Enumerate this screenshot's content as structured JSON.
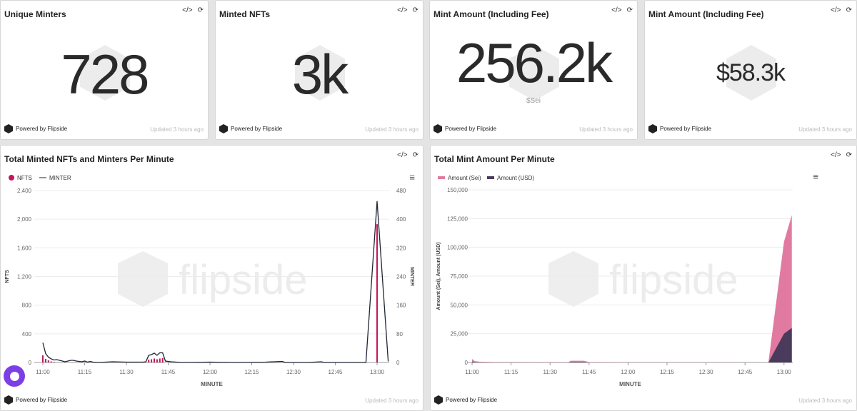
{
  "cards": [
    {
      "title": "Unique Minters",
      "value": "728",
      "sub": ""
    },
    {
      "title": "Minted NFTs",
      "value": "3k",
      "sub": ""
    },
    {
      "title": "Mint Amount (Including Fee)",
      "value": "256.2k",
      "sub": "$Sei"
    },
    {
      "title": "Mint Amount (Including Fee)",
      "value": "$58.3k",
      "sub": ""
    }
  ],
  "footer": {
    "powered": "Powered by Flipside",
    "updated": "Updated 3 hours ago"
  },
  "icons": {
    "embed": "</>",
    "refresh": "⟳",
    "menu": "≡"
  },
  "chart1_title": "Total Minted NFTs and Minters Per Minute",
  "chart2_title": "Total Mint Amount Per Minute",
  "watermark": "flipside",
  "chart_data": [
    {
      "type": "bar+line",
      "title": "Total Minted NFTs and Minters Per Minute",
      "xlabel": "MINUTE",
      "ylabel": "NFTS",
      "y2label": "MINTER",
      "xticks": [
        "11:00",
        "11:15",
        "11:30",
        "11:45",
        "12:00",
        "12:15",
        "12:30",
        "12:45",
        "13:00"
      ],
      "yticks": [
        "0",
        "400",
        "800",
        "1,200",
        "1,600",
        "2,000",
        "2,400"
      ],
      "ylim": [
        0,
        2400
      ],
      "y2ticks": [
        "0",
        "80",
        "160",
        "240",
        "320",
        "400",
        "480"
      ],
      "y2lim": [
        0,
        480
      ],
      "legend": [
        "NFTS",
        "MINTER"
      ],
      "colors": {
        "NFTS": "#c2185b",
        "MINTER": "#1e2533"
      },
      "nfts": [
        [
          0,
          100
        ],
        [
          1,
          50
        ],
        [
          2,
          30
        ],
        [
          3,
          15
        ],
        [
          4,
          8
        ],
        [
          38,
          40
        ],
        [
          39,
          45
        ],
        [
          40,
          55
        ],
        [
          41,
          45
        ],
        [
          42,
          55
        ],
        [
          43,
          60
        ],
        [
          120,
          1930
        ]
      ],
      "minter": [
        [
          0,
          55
        ],
        [
          1,
          25
        ],
        [
          2,
          15
        ],
        [
          3,
          10
        ],
        [
          4,
          7
        ],
        [
          5,
          8
        ],
        [
          6,
          6
        ],
        [
          7,
          4
        ],
        [
          8,
          2
        ],
        [
          9,
          4
        ],
        [
          10,
          6
        ],
        [
          11,
          6
        ],
        [
          12,
          4
        ],
        [
          13,
          3
        ],
        [
          14,
          2
        ],
        [
          15,
          4
        ],
        [
          16,
          1
        ],
        [
          17,
          3
        ],
        [
          18,
          1
        ],
        [
          20,
          0
        ],
        [
          25,
          2
        ],
        [
          30,
          1
        ],
        [
          36,
          1
        ],
        [
          37,
          2
        ],
        [
          38,
          20
        ],
        [
          39,
          22
        ],
        [
          40,
          26
        ],
        [
          41,
          20
        ],
        [
          42,
          27
        ],
        [
          43,
          27
        ],
        [
          44,
          4
        ],
        [
          46,
          2
        ],
        [
          50,
          0
        ],
        [
          60,
          1
        ],
        [
          70,
          0
        ],
        [
          80,
          1
        ],
        [
          86,
          3
        ],
        [
          87,
          0
        ],
        [
          95,
          0
        ],
        [
          100,
          2
        ],
        [
          101,
          0
        ],
        [
          115,
          0
        ],
        [
          116,
          0
        ],
        [
          120,
          450
        ],
        [
          124,
          3
        ]
      ]
    },
    {
      "type": "area",
      "title": "Total Mint Amount Per Minute",
      "xlabel": "MINUTE",
      "ylabel": "Amount (Sei), Amount (USD)",
      "xticks": [
        "11:00",
        "11:15",
        "11:30",
        "11:45",
        "12:00",
        "12:15",
        "12:30",
        "12:45",
        "13:00"
      ],
      "yticks": [
        "0",
        "25,000",
        "50,000",
        "75,000",
        "100,000",
        "125,000",
        "150,000"
      ],
      "ylim": [
        0,
        150000
      ],
      "legend": [
        "Amount (Sei)",
        "Amount (USD)"
      ],
      "colors": {
        "Amount (Sei)": "#e07aa0",
        "Amount (USD)": "#4a3a5c"
      },
      "sei": [
        [
          0,
          3000
        ],
        [
          1,
          1200
        ],
        [
          3,
          600
        ],
        [
          10,
          200
        ],
        [
          37,
          200
        ],
        [
          38,
          1500
        ],
        [
          43,
          1500
        ],
        [
          45,
          300
        ],
        [
          60,
          100
        ],
        [
          100,
          100
        ],
        [
          114,
          0
        ],
        [
          120,
          105000
        ],
        [
          123,
          128000
        ]
      ],
      "usd": [
        [
          0,
          700
        ],
        [
          1,
          300
        ],
        [
          3,
          150
        ],
        [
          37,
          50
        ],
        [
          38,
          350
        ],
        [
          43,
          350
        ],
        [
          45,
          50
        ],
        [
          114,
          0
        ],
        [
          120,
          25000
        ],
        [
          123,
          30000
        ]
      ]
    }
  ]
}
